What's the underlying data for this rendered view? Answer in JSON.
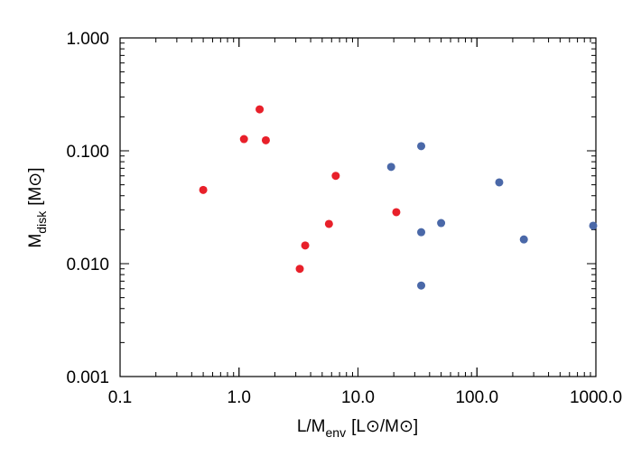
{
  "chart_data": {
    "type": "scatter",
    "title": "",
    "xlabel": {
      "main": "L/M",
      "sub": "env",
      "unit": "[L⊙/M⊙]"
    },
    "ylabel": {
      "main": "M",
      "sub": "disk",
      "unit": "[M⊙]"
    },
    "xscale": "log",
    "yscale": "log",
    "xlim": [
      0.1,
      1000
    ],
    "ylim": [
      0.001,
      1
    ],
    "xticks": [
      "0.1",
      "1.0",
      "10.0",
      "100.0",
      "1000.0"
    ],
    "yticks": [
      "0.001",
      "0.010",
      "0.100",
      "1.000"
    ],
    "grid": false,
    "series": [
      {
        "color": "#e8202a",
        "points": [
          [
            0.5,
            0.045
          ],
          [
            1.1,
            0.127
          ],
          [
            1.49,
            0.233
          ],
          [
            1.68,
            0.124
          ],
          [
            3.24,
            0.009
          ],
          [
            3.6,
            0.0145
          ],
          [
            5.7,
            0.0225
          ],
          [
            6.5,
            0.06
          ],
          [
            21,
            0.0286
          ]
        ]
      },
      {
        "color": "#4a68a8",
        "points": [
          [
            34,
            0.11
          ],
          [
            19,
            0.072
          ],
          [
            154,
            0.0525
          ],
          [
            50,
            0.0229
          ],
          [
            34,
            0.019
          ],
          [
            248,
            0.0164
          ],
          [
            949,
            0.0217
          ],
          [
            34,
            0.0064
          ]
        ]
      }
    ]
  }
}
